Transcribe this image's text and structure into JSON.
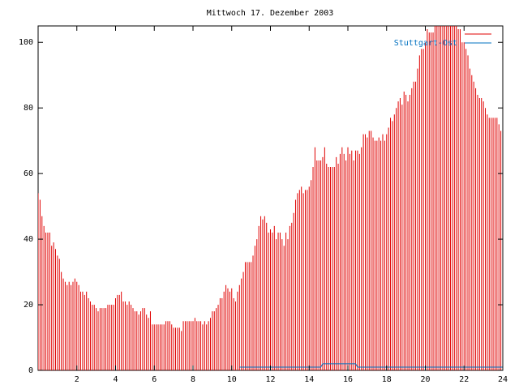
{
  "chart_data": {
    "type": "impulses",
    "title": "Mittwoch 17. Dezember 2003",
    "xlim": [
      0,
      24
    ],
    "ylim": [
      0,
      105
    ],
    "xticks": [
      2,
      4,
      6,
      8,
      10,
      12,
      14,
      16,
      18,
      20,
      22,
      24
    ],
    "yticks": [
      0,
      20,
      40,
      60,
      80,
      100
    ],
    "series": [
      {
        "color": "#e00000",
        "style": "impulses",
        "x": [
          0,
          0.1,
          0.2,
          0.3,
          0.4,
          0.5,
          0.6,
          0.7,
          0.8,
          0.9,
          1,
          1.1,
          1.2,
          1.3,
          1.4,
          1.5,
          1.6,
          1.7,
          1.8,
          1.9,
          2,
          2.1,
          2.2,
          2.3,
          2.4,
          2.5,
          2.6,
          2.7,
          2.8,
          2.9,
          3,
          3.1,
          3.2,
          3.3,
          3.4,
          3.5,
          3.6,
          3.7,
          3.8,
          3.9,
          4,
          4.1,
          4.2,
          4.3,
          4.4,
          4.5,
          4.6,
          4.7,
          4.8,
          4.9,
          5,
          5.1,
          5.2,
          5.3,
          5.4,
          5.5,
          5.6,
          5.7,
          5.8,
          5.9,
          6,
          6.1,
          6.2,
          6.3,
          6.4,
          6.5,
          6.6,
          6.7,
          6.8,
          6.9,
          7,
          7.1,
          7.2,
          7.3,
          7.4,
          7.5,
          7.6,
          7.7,
          7.8,
          7.9,
          8,
          8.1,
          8.2,
          8.3,
          8.4,
          8.5,
          8.6,
          8.7,
          8.8,
          8.9,
          9,
          9.1,
          9.2,
          9.3,
          9.4,
          9.5,
          9.6,
          9.7,
          9.8,
          9.9,
          10,
          10.1,
          10.2,
          10.3,
          10.4,
          10.5,
          10.6,
          10.7,
          10.8,
          10.9,
          11,
          11.1,
          11.2,
          11.3,
          11.4,
          11.5,
          11.6,
          11.7,
          11.8,
          11.9,
          12,
          12.1,
          12.2,
          12.3,
          12.4,
          12.5,
          12.6,
          12.7,
          12.8,
          12.9,
          13,
          13.1,
          13.2,
          13.3,
          13.4,
          13.5,
          13.6,
          13.7,
          13.8,
          13.9,
          14,
          14.1,
          14.2,
          14.3,
          14.4,
          14.5,
          14.6,
          14.7,
          14.8,
          14.9,
          15,
          15.1,
          15.2,
          15.3,
          15.4,
          15.5,
          15.6,
          15.7,
          15.8,
          15.9,
          16,
          16.1,
          16.2,
          16.3,
          16.4,
          16.5,
          16.6,
          16.7,
          16.8,
          16.9,
          17,
          17.1,
          17.2,
          17.3,
          17.4,
          17.5,
          17.6,
          17.7,
          17.8,
          17.9,
          18,
          18.1,
          18.2,
          18.3,
          18.4,
          18.5,
          18.6,
          18.7,
          18.8,
          18.9,
          19,
          19.1,
          19.2,
          19.3,
          19.4,
          19.5,
          19.6,
          19.7,
          19.8,
          19.9,
          20,
          20.1,
          20.2,
          20.3,
          20.4,
          20.5,
          20.6,
          20.7,
          20.8,
          20.9,
          21,
          21.1,
          21.2,
          21.3,
          21.4,
          21.5,
          21.6,
          21.7,
          21.8,
          21.9,
          22,
          22.1,
          22.2,
          22.3,
          22.4,
          22.5,
          22.6,
          22.7,
          22.8,
          22.9,
          23,
          23.1,
          23.2,
          23.3,
          23.4,
          23.5,
          23.6,
          23.7,
          23.8,
          23.9
        ],
        "values": [
          54,
          52,
          47,
          44,
          42,
          42,
          42,
          38,
          39,
          37,
          35,
          34,
          30,
          28,
          27,
          26,
          27,
          26,
          27,
          28,
          27,
          26,
          24,
          24,
          23,
          24,
          22,
          21,
          20,
          20,
          19,
          18,
          19,
          19,
          19,
          19,
          20,
          20,
          20,
          20,
          22,
          23,
          23,
          24,
          21,
          21,
          20,
          21,
          20,
          19,
          18,
          18,
          17,
          18,
          19,
          19,
          17,
          16,
          18,
          14,
          14,
          14,
          14,
          14,
          14,
          14,
          15,
          15,
          15,
          14,
          13,
          13,
          13,
          13,
          12,
          15,
          15,
          15,
          15,
          15,
          15,
          16,
          15,
          15,
          15,
          14,
          15,
          14,
          15,
          16,
          18,
          18,
          19,
          20,
          22,
          22,
          24,
          26,
          25,
          24,
          25,
          22,
          21,
          24,
          26,
          28,
          30,
          33,
          33,
          33,
          33,
          35,
          38,
          40,
          44,
          47,
          46,
          47,
          45,
          42,
          43,
          42,
          44,
          40,
          42,
          42,
          40,
          38,
          42,
          40,
          44,
          45,
          48,
          52,
          54,
          55,
          56,
          54,
          55,
          55,
          56,
          58,
          62,
          68,
          64,
          64,
          64,
          65,
          68,
          63,
          62,
          62,
          62,
          62,
          65,
          63,
          66,
          68,
          66,
          64,
          68,
          66,
          67,
          64,
          67,
          67,
          66,
          68,
          72,
          72,
          71,
          73,
          73,
          71,
          70,
          70,
          71,
          70,
          72,
          70,
          72,
          74,
          77,
          76,
          78,
          80,
          82,
          83,
          81,
          85,
          84,
          82,
          84,
          86,
          88,
          88,
          92,
          96,
          98,
          98,
          100,
          104,
          103,
          103,
          103,
          105,
          105,
          105,
          105,
          105,
          105,
          105,
          105,
          105,
          105,
          105,
          105,
          104,
          104,
          100,
          100,
          98,
          96,
          92,
          90,
          88,
          86,
          84,
          83,
          83,
          82,
          80,
          78,
          77,
          77,
          77,
          77,
          77,
          75,
          73
        ]
      },
      {
        "name": "Stuttgart-Ost",
        "color": "#0070c0",
        "style": "line",
        "x": [
          10.4,
          14.6,
          14.7,
          16.4,
          16.5,
          24
        ],
        "values": [
          1,
          1,
          2,
          2,
          1,
          1
        ]
      }
    ]
  }
}
